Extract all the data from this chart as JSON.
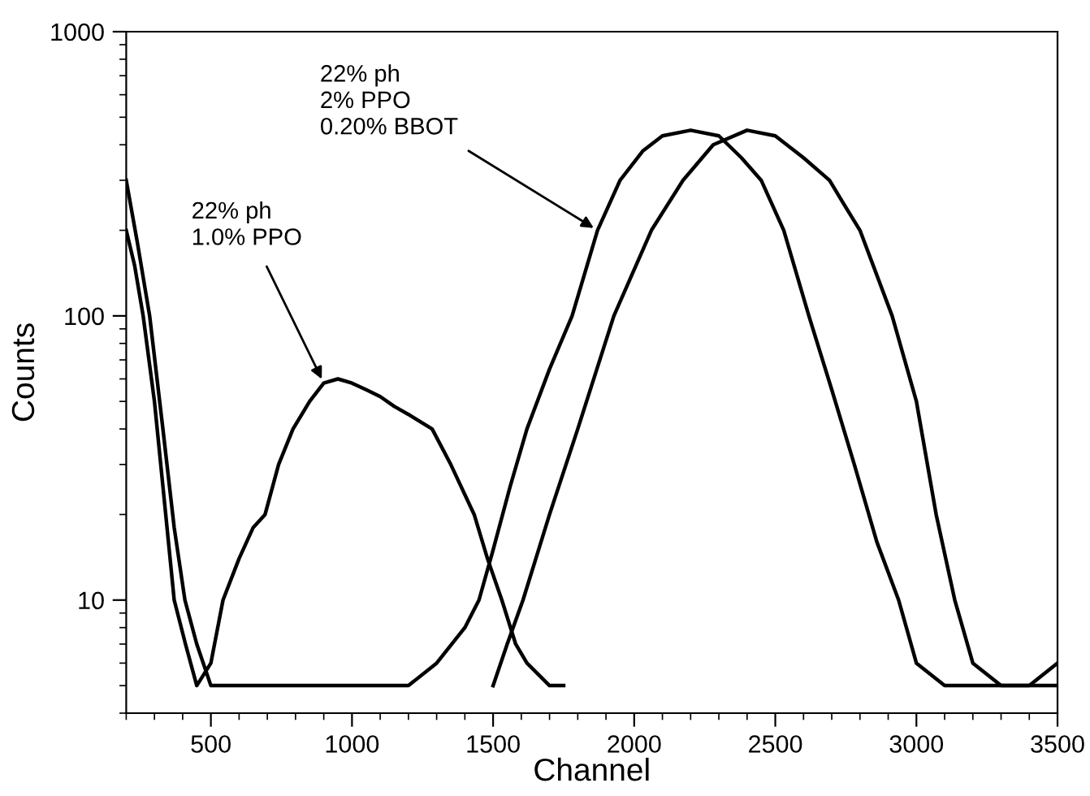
{
  "chart_data": {
    "type": "line",
    "xlabel": "Channel",
    "ylabel": "Counts",
    "log": "y",
    "xlim": [
      200,
      3500
    ],
    "xticks": [
      500,
      1000,
      1500,
      2000,
      2500,
      3000,
      3500
    ],
    "ylim": [
      4,
      1000
    ],
    "yticks": [
      10,
      100,
      1000
    ],
    "grid": false,
    "marker": "none",
    "line_style": "solid",
    "series": [
      {
        "color": "#000000",
        "x": [
          200,
          230,
          260,
          300,
          340,
          370,
          410,
          450,
          500,
          543,
          600,
          650,
          692,
          740,
          791,
          850,
          900,
          950,
          1000,
          1050,
          1100,
          1150,
          1200,
          1284,
          1350,
          1433,
          1480,
          1531,
          1580,
          1620,
          1700,
          1750
        ],
        "values": [
          200,
          150,
          100,
          50,
          20,
          10,
          7,
          5,
          6,
          10,
          14,
          18,
          20,
          30,
          40,
          50,
          58,
          60,
          58,
          55,
          52,
          48,
          45,
          40,
          30,
          20,
          14,
          10,
          7,
          6,
          5,
          5
        ]
      },
      {
        "color": "#000000",
        "x": [
          200,
          240,
          283,
          330,
          370,
          408,
          450,
          500,
          600,
          800,
          1000,
          1200,
          1300,
          1400,
          1450,
          1500,
          1560,
          1620,
          1700,
          1780,
          1870,
          1950,
          2030,
          2100,
          2200,
          2300,
          2380,
          2450,
          2530,
          2619,
          2700,
          2780,
          2860,
          2937,
          3000,
          3100,
          3200,
          3300,
          3400,
          3500
        ],
        "values": [
          300,
          180,
          100,
          40,
          18,
          10,
          7,
          5,
          5,
          5,
          5,
          5,
          6,
          8,
          10,
          15,
          25,
          40,
          65,
          100,
          200,
          300,
          380,
          430,
          450,
          430,
          360,
          300,
          200,
          100,
          55,
          30,
          16,
          10,
          6,
          5,
          5,
          5,
          5,
          5
        ]
      },
      {
        "color": "#000000",
        "x": [
          1500,
          1550,
          1606,
          1700,
          1800,
          1928,
          2061,
          2173,
          2280,
          2400,
          2500,
          2600,
          2692,
          2740,
          2800,
          2914,
          3000,
          3070,
          3136,
          3200,
          3300,
          3400,
          3500
        ],
        "values": [
          5,
          7,
          10,
          20,
          40,
          100,
          200,
          300,
          400,
          450,
          430,
          360,
          300,
          250,
          200,
          100,
          50,
          20,
          10,
          6,
          5,
          5,
          6
        ]
      }
    ],
    "annotations": [
      {
        "text": "22% ph\n1.0% PPO",
        "x": 900,
        "y": 58
      },
      {
        "text": "22% ph\n2% PPO\n0.20% BBOT",
        "x": 1870,
        "y": 200
      }
    ]
  }
}
